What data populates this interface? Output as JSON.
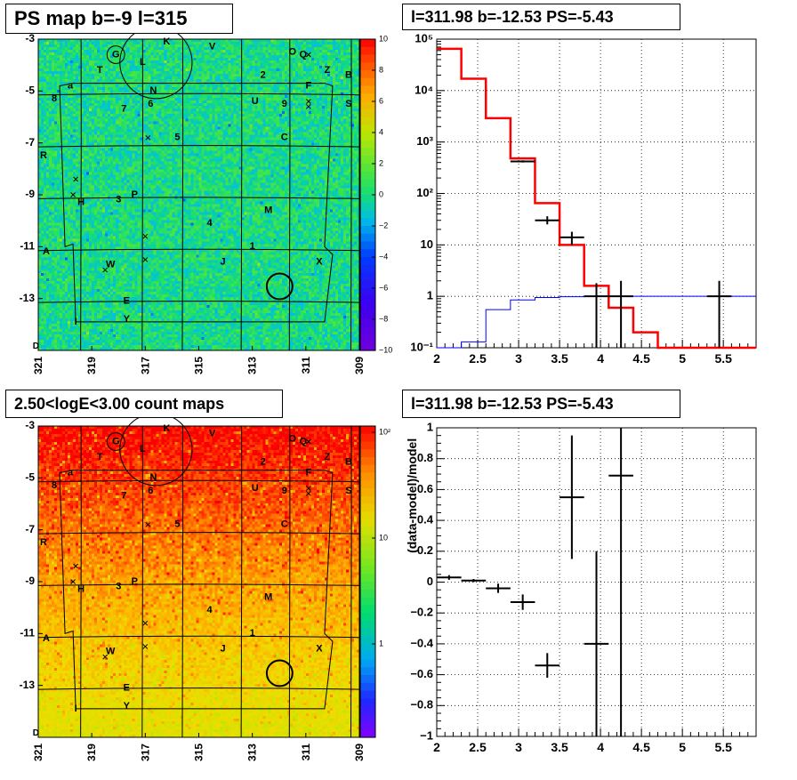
{
  "panels": {
    "ps_map": {
      "title": "PS map b=-9 l=315"
    },
    "spectrum": {
      "title": "l=311.98 b=-12.53 PS=-5.43"
    },
    "count_map": {
      "title": "2.50<logE<3.00 count maps"
    },
    "residual": {
      "title": "l=311.98 b=-12.53 PS=-5.43"
    }
  },
  "maps": {
    "x_ticks": [
      "321",
      "319",
      "317",
      "315",
      "313",
      "311",
      "309"
    ],
    "y_ticks": [
      "-3",
      "-5",
      "-7",
      "-9",
      "-11",
      "-13"
    ],
    "corner_label": "D",
    "ps_colorbar_labels": [
      "10",
      "8",
      "6",
      "4",
      "2",
      "0",
      "−2",
      "−4",
      "−6",
      "−8",
      "−10"
    ],
    "count_colorbar_labels": [
      "10²",
      "10",
      "1"
    ],
    "source_labels": [
      {
        "t": "K",
        "l": 316.2,
        "b": -3.1
      },
      {
        "t": "V",
        "l": 314.5,
        "b": -3.3
      },
      {
        "t": "G",
        "l": 318.1,
        "b": -3.6
      },
      {
        "t": "L",
        "l": 317.1,
        "b": -3.9
      },
      {
        "t": "O",
        "l": 311.5,
        "b": -3.5
      },
      {
        "t": "Q",
        "l": 311.1,
        "b": -3.6
      },
      {
        "t": "T",
        "l": 318.7,
        "b": -4.2
      },
      {
        "t": "Z",
        "l": 310.2,
        "b": -4.2
      },
      {
        "t": "B",
        "l": 309.4,
        "b": -4.4
      },
      {
        "t": "2",
        "l": 312.6,
        "b": -4.4
      },
      {
        "t": "a",
        "l": 319.8,
        "b": -4.8
      },
      {
        "t": "F",
        "l": 310.9,
        "b": -4.8
      },
      {
        "t": "N",
        "l": 316.7,
        "b": -5.0
      },
      {
        "t": "8",
        "l": 320.4,
        "b": -5.3
      },
      {
        "t": "U",
        "l": 312.9,
        "b": -5.4
      },
      {
        "t": "9",
        "l": 311.8,
        "b": -5.5
      },
      {
        "t": "7",
        "l": 317.8,
        "b": -5.7
      },
      {
        "t": "6",
        "l": 316.8,
        "b": -5.5
      },
      {
        "t": "S",
        "l": 309.4,
        "b": -5.5
      },
      {
        "t": "5",
        "l": 315.8,
        "b": -6.8
      },
      {
        "t": "C",
        "l": 311.8,
        "b": -6.8
      },
      {
        "t": "R",
        "l": 320.8,
        "b": -7.5
      },
      {
        "t": "P",
        "l": 317.4,
        "b": -9.0
      },
      {
        "t": "3",
        "l": 318.0,
        "b": -9.2
      },
      {
        "t": "H",
        "l": 319.4,
        "b": -9.3
      },
      {
        "t": "M",
        "l": 312.4,
        "b": -9.6
      },
      {
        "t": "4",
        "l": 314.6,
        "b": -10.1
      },
      {
        "t": "1",
        "l": 313.0,
        "b": -11.0
      },
      {
        "t": "A",
        "l": 320.7,
        "b": -11.2
      },
      {
        "t": "J",
        "l": 314.1,
        "b": -11.6
      },
      {
        "t": "W",
        "l": 318.3,
        "b": -11.7
      },
      {
        "t": "X",
        "l": 310.5,
        "b": -11.6
      },
      {
        "t": "E",
        "l": 317.7,
        "b": -13.1
      },
      {
        "t": "Y",
        "l": 317.7,
        "b": -13.8
      },
      {
        "t": "I",
        "l": 319.6,
        "b": -13.9
      }
    ],
    "crosses": [
      {
        "l": 310.9,
        "b": -3.6
      },
      {
        "l": 310.9,
        "b": -5.4
      },
      {
        "l": 310.9,
        "b": -5.6
      },
      {
        "l": 316.9,
        "b": -6.8
      },
      {
        "l": 319.6,
        "b": -8.4
      },
      {
        "l": 319.7,
        "b": -9.0
      },
      {
        "l": 317.0,
        "b": -10.6
      },
      {
        "l": 318.5,
        "b": -11.9
      },
      {
        "l": 317.0,
        "b": -11.5
      }
    ],
    "circles": [
      {
        "l": 318.1,
        "b": -3.6,
        "r": 0.33
      },
      {
        "l": 316.6,
        "b": -3.9,
        "r": 1.35
      },
      {
        "l": 311.98,
        "b": -12.53,
        "r": 0.48
      }
    ]
  },
  "chart_data": [
    {
      "type": "line",
      "x_ticks": [
        "2",
        "2.5",
        "3",
        "3.5",
        "4",
        "4.5",
        "5",
        "5.5"
      ],
      "xlim": [
        2,
        5.9
      ],
      "ylim": [
        0.1,
        100000
      ],
      "yscale": "log",
      "y_ticks": [
        "10⁵",
        "10⁴",
        "10³",
        "10²",
        "10",
        "1",
        "10⁻¹"
      ],
      "grid": true,
      "series": [
        {
          "color": "#ff0000",
          "style": "step",
          "edges": [
            2.0,
            2.3,
            2.6,
            2.9,
            3.2,
            3.5,
            3.8,
            4.1,
            4.4,
            4.7,
            5.9
          ],
          "values": [
            65000,
            17000,
            2900,
            480,
            65,
            10,
            1.6,
            0.6,
            0.2,
            0.1
          ]
        },
        {
          "color": "#0000ff",
          "style": "step",
          "edges": [
            2.0,
            2.3,
            2.6,
            2.9,
            3.2,
            3.5,
            3.8,
            4.1,
            4.4,
            4.7,
            5.0,
            5.9
          ],
          "values": [
            0.1,
            0.13,
            0.55,
            0.85,
            0.95,
            0.98,
            1.0,
            1.0,
            1.0,
            1.0,
            1.0
          ]
        },
        {
          "color": "#000000",
          "style": "points",
          "x": [
            3.05,
            3.35,
            3.65,
            3.95,
            4.25,
            5.45
          ],
          "y": [
            420,
            30,
            14,
            1,
            1,
            1
          ],
          "xerr": [
            0.15,
            0.15,
            0.15,
            0.15,
            0.15,
            0.15
          ],
          "ylo": [
            400,
            25,
            10,
            0.1,
            0.1,
            0.1
          ],
          "yhi": [
            440,
            36,
            18,
            1.8,
            2.0,
            2.0
          ]
        }
      ]
    },
    {
      "type": "scatter",
      "x_ticks": [
        "2",
        "2.5",
        "3",
        "3.5",
        "4",
        "4.5",
        "5",
        "5.5"
      ],
      "xlim": [
        2,
        5.9
      ],
      "ylim": [
        -1,
        1
      ],
      "y_ticks": [
        "1",
        "0.8",
        "0.6",
        "0.4",
        "0.2",
        "0",
        "−0.2",
        "−0.4",
        "−0.6",
        "−0.8",
        "−1"
      ],
      "ylabel": "(data-model)/model",
      "grid": true,
      "points": {
        "x": [
          2.15,
          2.45,
          2.75,
          3.05,
          3.35,
          3.65,
          3.95,
          4.25
        ],
        "y": [
          0.03,
          0.01,
          -0.04,
          -0.13,
          -0.54,
          0.55,
          -0.4,
          0.69
        ],
        "xerr": [
          0.15,
          0.15,
          0.15,
          0.15,
          0.15,
          0.15,
          0.15,
          0.15
        ],
        "ylo": [
          0.015,
          0.0,
          -0.07,
          -0.18,
          -0.62,
          0.15,
          -1.0,
          -1.0
        ],
        "yhi": [
          0.045,
          0.02,
          -0.01,
          -0.08,
          -0.46,
          0.95,
          0.2,
          1.0
        ]
      }
    }
  ]
}
